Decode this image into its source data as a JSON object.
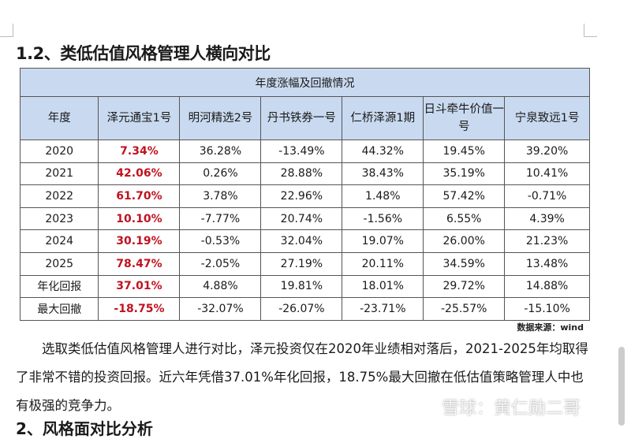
{
  "section_title": "1.2、类低估值风格管理人横向对比",
  "table": {
    "title": "年度涨幅及回撤情况",
    "headers": [
      "年度",
      "泽元通宝1号",
      "明河精选2号",
      "丹书铁券一号",
      "仁桥泽源1期",
      "日斗牵牛价值一号",
      "宁泉致远1号"
    ],
    "rows": [
      [
        "2020",
        "7.34%",
        "36.28%",
        "-13.49%",
        "44.32%",
        "19.45%",
        "39.20%"
      ],
      [
        "2021",
        "42.06%",
        "0.26%",
        "28.88%",
        "38.43%",
        "35.19%",
        "10.41%"
      ],
      [
        "2022",
        "61.70%",
        "3.78%",
        "22.96%",
        "1.48%",
        "57.42%",
        "-0.71%"
      ],
      [
        "2023",
        "10.10%",
        "-7.77%",
        "20.74%",
        "-1.56%",
        "6.55%",
        "4.39%"
      ],
      [
        "2024",
        "30.19%",
        "-0.53%",
        "32.04%",
        "19.07%",
        "26.00%",
        "21.23%"
      ],
      [
        "2025",
        "78.47%",
        "-2.05%",
        "27.19%",
        "20.11%",
        "34.59%",
        "13.48%"
      ],
      [
        "年化回报",
        "37.01%",
        "4.88%",
        "19.81%",
        "18.01%",
        "29.72%",
        "14.88%"
      ],
      [
        "最大回撤",
        "-18.75%",
        "-32.07%",
        "-26.07%",
        "-23.71%",
        "-25.57%",
        "-15.10%"
      ]
    ],
    "header_color": "#c9daf0",
    "highlight_color": "#c0121f"
  },
  "source": "数据来源：wind",
  "paragraph": "选取类低估值风格管理人进行对比，泽元投资仅在2020年业绩相对落后，2021-2025年均取得了非常不错的投资回报。近六年凭借37.01%年化回报，18.75%最大回撤在低估值策略管理人中也有极强的竞争力。",
  "next_heading": "2、风格面对比分析",
  "watermark": "雪球：黄仁勋二哥"
}
